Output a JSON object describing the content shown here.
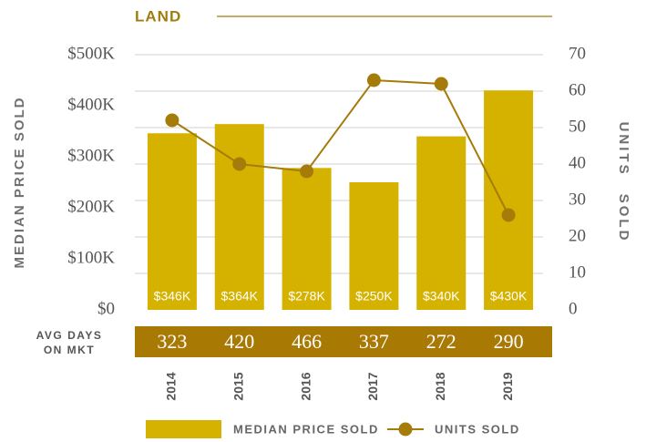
{
  "chart_data": {
    "type": "bar",
    "title": "LAND",
    "categories": [
      "2014",
      "2015",
      "2016",
      "2017",
      "2018",
      "2019"
    ],
    "series": [
      {
        "name": "MEDIAN PRICE SOLD",
        "type": "bar",
        "color": "#d5b200",
        "values": [
          346000,
          364000,
          278000,
          250000,
          340000,
          430000
        ],
        "value_labels": [
          "$346K",
          "$364K",
          "$278K",
          "$250K",
          "$340K",
          "$430K"
        ]
      },
      {
        "name": "UNITS SOLD",
        "type": "line",
        "axis": "y2",
        "color": "#a57c0a",
        "values": [
          52,
          40,
          38,
          63,
          62,
          26
        ]
      }
    ],
    "y_label": "MEDIAN PRICE SOLD",
    "y2_label": "UNITS SOLD",
    "ylim": [
      0,
      500000
    ],
    "yticks": [
      {
        "value": 0,
        "label": "$0"
      },
      {
        "value": 100000,
        "label": "$100K"
      },
      {
        "value": 200000,
        "label": "$200K"
      },
      {
        "value": 300000,
        "label": "$300K"
      },
      {
        "value": 400000,
        "label": "$400K"
      },
      {
        "value": 500000,
        "label": "$500K"
      }
    ],
    "y2lim": [
      0,
      70
    ],
    "y2ticks": [
      0,
      10,
      20,
      30,
      40,
      50,
      60,
      70
    ],
    "grid": true,
    "avg_days_label": [
      "AVG DAYS",
      "ON MKT"
    ],
    "avg_days": [
      323,
      420,
      466,
      337,
      272,
      290
    ],
    "avg_days_color": "#a87a04"
  }
}
